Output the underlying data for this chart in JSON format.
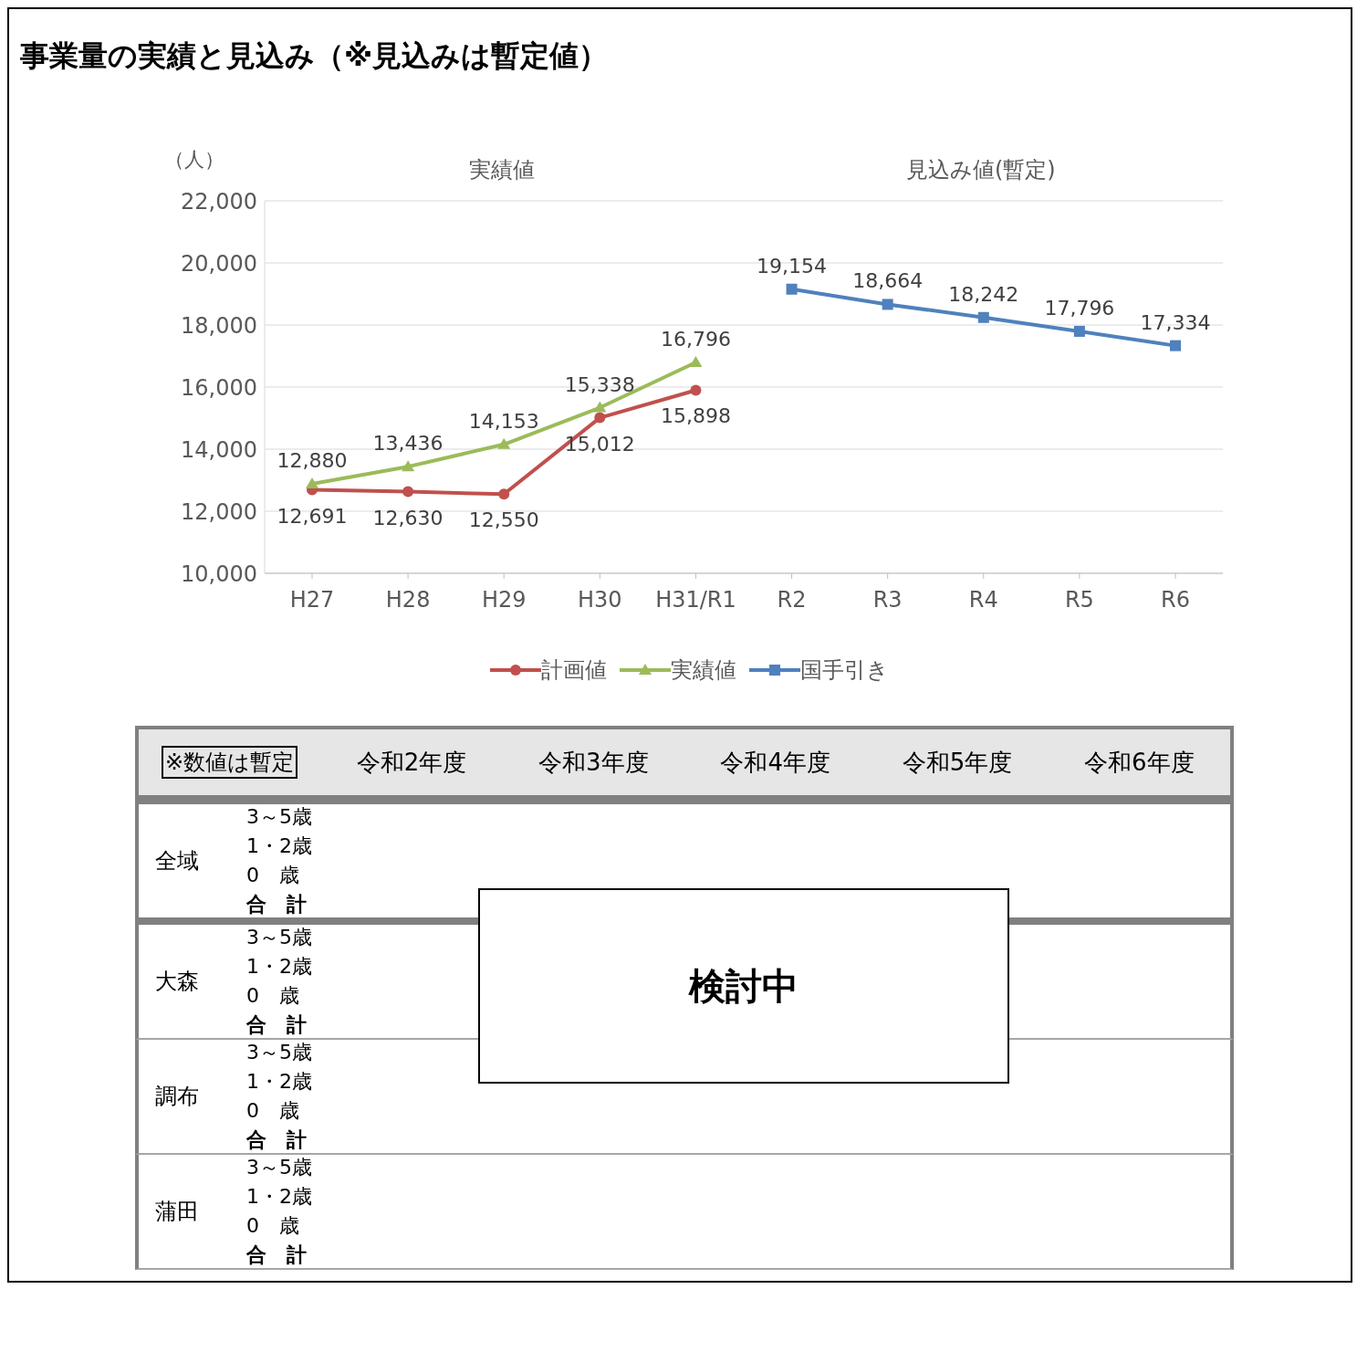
{
  "chart_data": [
    {
      "type": "line",
      "title": "事業量の実績と見込み（※見込みは暫定値）",
      "ylabel": "（人）",
      "annotations": [
        "実績値",
        "見込み値(暫定)"
      ],
      "categories": [
        "H27",
        "H28",
        "H29",
        "H30",
        "H31/R1",
        "R2",
        "R3",
        "R4",
        "R5",
        "R6"
      ],
      "series": [
        {
          "name": "計画値",
          "color": "#c0504d",
          "marker": "circle",
          "values": [
            12691,
            12630,
            12550,
            15012,
            15898,
            null,
            null,
            null,
            null,
            null
          ],
          "value_labels": [
            "12,691",
            "12,630",
            "12,550",
            "15,012",
            "15,898",
            null,
            null,
            null,
            null,
            null
          ]
        },
        {
          "name": "実績値",
          "color": "#9bbb59",
          "marker": "triangle",
          "values": [
            12880,
            13436,
            14153,
            15338,
            16796,
            null,
            null,
            null,
            null,
            null
          ],
          "value_labels": [
            "12,880",
            "13,436",
            "14,153",
            "15,338",
            "16,796",
            null,
            null,
            null,
            null,
            null
          ]
        },
        {
          "name": "国手引き",
          "color": "#4f81bd",
          "marker": "square",
          "values": [
            null,
            null,
            null,
            null,
            null,
            19154,
            18664,
            18242,
            17796,
            17334
          ],
          "value_labels": [
            null,
            null,
            null,
            null,
            null,
            "19,154",
            "18,664",
            "18,242",
            "17,796",
            "17,334"
          ]
        }
      ],
      "ylim": [
        10000,
        22000
      ],
      "yticks": [
        {
          "value": 10000,
          "label": "10,000"
        },
        {
          "value": 12000,
          "label": "12,000"
        },
        {
          "value": 14000,
          "label": "14,000"
        },
        {
          "value": 16000,
          "label": "16,000"
        },
        {
          "value": 18000,
          "label": "18,000"
        },
        {
          "value": 20000,
          "label": "20,000"
        },
        {
          "value": 22000,
          "label": "22,000"
        }
      ],
      "grid": "y",
      "legend": "bottom"
    },
    {
      "type": "other",
      "categories": [
        "令和2年度",
        "令和3年度",
        "令和4年度",
        "令和5年度",
        "令和6年度"
      ],
      "y_categories": [
        "全域",
        "大森",
        "調布",
        "蒲田"
      ],
      "annotations": [
        "※数値は暫定",
        "3～5歳",
        "1・2歳",
        "0　歳",
        "合　計",
        "検討中"
      ]
    }
  ]
}
